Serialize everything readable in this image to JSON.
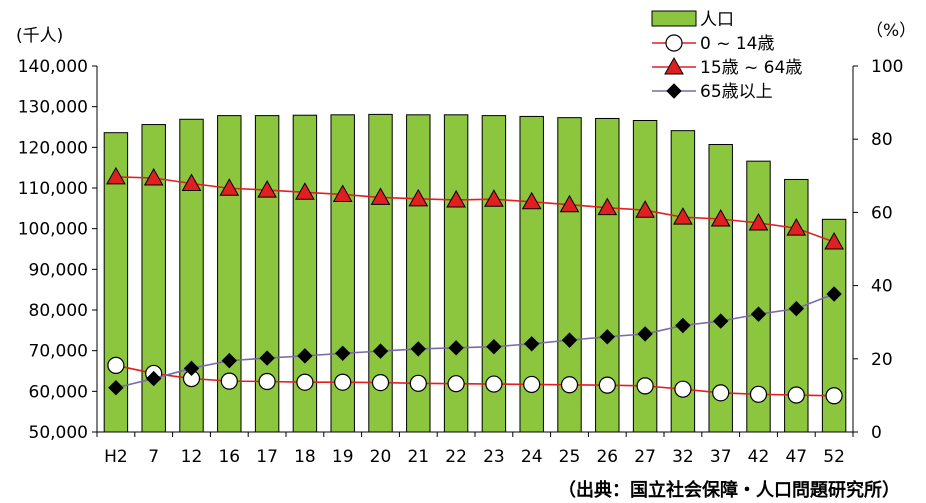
{
  "chart_data": {
    "type": "bar",
    "categories": [
      "H2",
      "7",
      "12",
      "16",
      "17",
      "18",
      "19",
      "20",
      "21",
      "22",
      "23",
      "24",
      "25",
      "26",
      "27",
      "32",
      "37",
      "42",
      "47",
      "52"
    ],
    "left_axis": {
      "unit_label": "(千人)",
      "ylim": [
        50000,
        140000
      ],
      "ticks": [
        "140,000",
        "130,000",
        "120,000",
        "110,000",
        "100,000",
        "90,000",
        "80,000",
        "70,000",
        "60,000",
        "50,000"
      ],
      "tick_values": [
        140000,
        130000,
        120000,
        110000,
        100000,
        90000,
        80000,
        70000,
        60000,
        50000
      ]
    },
    "right_axis": {
      "unit_label": "（%）",
      "ylim": [
        0,
        100
      ],
      "ticks": [
        "100",
        "80",
        "60",
        "40",
        "20",
        "0"
      ],
      "tick_values": [
        100,
        80,
        60,
        40,
        20,
        0
      ]
    },
    "series": [
      {
        "name": "人口",
        "type": "bar",
        "axis": "left",
        "color": "#8cc63f",
        "values": [
          123600,
          125600,
          126900,
          127800,
          127800,
          127900,
          128000,
          128100,
          128000,
          128000,
          127800,
          127600,
          127300,
          127100,
          126600,
          124100,
          120700,
          116600,
          112100,
          102300
        ]
      },
      {
        "name": "0 ~ 14歳",
        "type": "line",
        "axis": "right",
        "color": "#e02020",
        "marker": "circle",
        "values": [
          18.2,
          16.0,
          14.6,
          13.9,
          13.8,
          13.6,
          13.6,
          13.5,
          13.3,
          13.2,
          13.1,
          13.0,
          12.9,
          12.8,
          12.6,
          11.7,
          10.7,
          10.3,
          10.1,
          9.9
        ]
      },
      {
        "name": "15歳 ~ 64歳",
        "type": "line",
        "axis": "right",
        "color": "#e02020",
        "marker": "triangle",
        "values": [
          69.7,
          69.4,
          67.9,
          66.6,
          66.1,
          65.5,
          64.9,
          64.1,
          63.7,
          63.4,
          63.6,
          62.9,
          62.1,
          61.3,
          60.6,
          58.7,
          58.2,
          57.1,
          55.7,
          51.9
        ]
      },
      {
        "name": "65歳以上",
        "type": "line",
        "axis": "right",
        "color": "#7b6aa8",
        "marker": "diamond",
        "values": [
          12.1,
          14.6,
          17.4,
          19.5,
          20.2,
          20.8,
          21.5,
          22.1,
          22.7,
          23.0,
          23.3,
          24.1,
          25.1,
          26.0,
          26.8,
          29.1,
          30.3,
          32.2,
          33.7,
          37.7
        ]
      }
    ],
    "legend_position": "top-right",
    "grid": false
  },
  "source": "（出典：国立社会保障・人口問題研究所）"
}
